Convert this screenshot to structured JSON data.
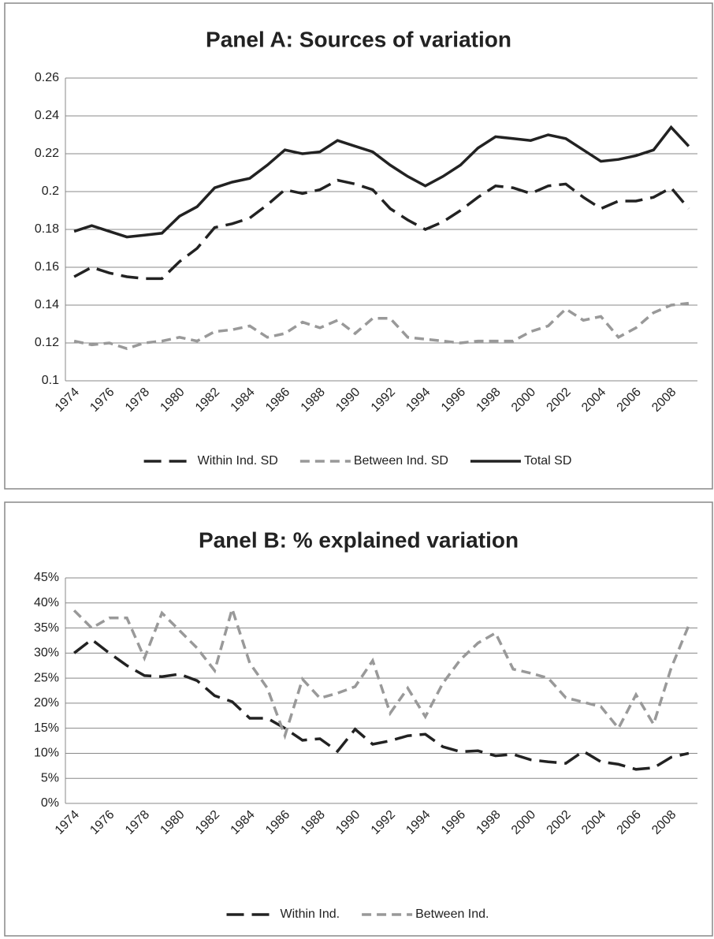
{
  "chart_data": [
    {
      "type": "line",
      "title": "Panel A: Sources of variation",
      "categories": [
        "1974",
        null,
        "1976",
        null,
        "1978",
        null,
        "1980",
        null,
        "1982",
        null,
        "1984",
        null,
        "1986",
        null,
        "1988",
        null,
        "1990",
        null,
        "1992",
        null,
        "1994",
        null,
        "1996",
        null,
        "1998",
        null,
        "2000",
        null,
        "2002",
        null,
        "2004",
        null,
        "2006",
        null,
        "2008",
        null
      ],
      "ylim": [
        0.1,
        0.26
      ],
      "yticks": [
        0.1,
        0.12,
        0.14,
        0.16,
        0.18,
        0.2,
        0.22,
        0.24,
        0.26
      ],
      "grid": true,
      "legend": "bottom",
      "series": [
        {
          "name": "Within Ind. SD",
          "color": "#222222",
          "line_style": "long-dash",
          "values": [
            0.155,
            0.16,
            0.157,
            0.155,
            0.154,
            0.154,
            0.163,
            0.17,
            0.181,
            0.183,
            0.186,
            0.193,
            0.201,
            0.199,
            0.201,
            0.206,
            0.204,
            0.201,
            0.191,
            0.185,
            0.18,
            0.184,
            0.19,
            0.197,
            0.203,
            0.202,
            0.199,
            0.203,
            0.204,
            0.197,
            0.191,
            0.195,
            0.195,
            0.197,
            0.202,
            0.191
          ]
        },
        {
          "name": "Between Ind. SD",
          "color": "#999999",
          "line_style": "dash",
          "values": [
            0.121,
            0.119,
            0.12,
            0.117,
            0.12,
            0.121,
            0.123,
            0.121,
            0.126,
            0.127,
            0.129,
            0.123,
            0.125,
            0.131,
            0.128,
            0.132,
            0.125,
            0.133,
            0.133,
            0.123,
            0.122,
            0.121,
            0.12,
            0.121,
            0.121,
            0.121,
            0.126,
            0.129,
            0.138,
            0.132,
            0.134,
            0.123,
            0.128,
            0.136,
            0.14,
            0.141
          ]
        },
        {
          "name": "Total SD",
          "color": "#222222",
          "line_style": "solid",
          "values": [
            0.179,
            0.182,
            0.179,
            0.176,
            0.177,
            0.178,
            0.187,
            0.192,
            0.202,
            0.205,
            0.207,
            0.214,
            0.222,
            0.22,
            0.221,
            0.227,
            0.224,
            0.221,
            0.214,
            0.208,
            0.203,
            0.208,
            0.214,
            0.223,
            0.229,
            0.228,
            0.227,
            0.23,
            0.228,
            0.222,
            0.216,
            0.217,
            0.219,
            0.222,
            0.234,
            0.224
          ]
        }
      ]
    },
    {
      "type": "line",
      "title": "Panel B: % explained variation",
      "categories": [
        "1974",
        null,
        "1976",
        null,
        "1978",
        null,
        "1980",
        null,
        "1982",
        null,
        "1984",
        null,
        "1986",
        null,
        "1988",
        null,
        "1990",
        null,
        "1992",
        null,
        "1994",
        null,
        "1996",
        null,
        "1998",
        null,
        "2000",
        null,
        "2002",
        null,
        "2004",
        null,
        "2006",
        null,
        "2008",
        null
      ],
      "ylim": [
        0,
        45
      ],
      "yticks": [
        {
          "value": 0,
          "label": "0%"
        },
        {
          "value": 5,
          "label": "5%"
        },
        {
          "value": 10,
          "label": "10%"
        },
        {
          "value": 15,
          "label": "15%"
        },
        {
          "value": 20,
          "label": "20%"
        },
        {
          "value": 25,
          "label": "25%"
        },
        {
          "value": 30,
          "label": "30%"
        },
        {
          "value": 35,
          "label": "35%"
        },
        {
          "value": 40,
          "label": "40%"
        },
        {
          "value": 45,
          "label": "45%"
        }
      ],
      "grid": true,
      "legend": "bottom",
      "series": [
        {
          "name": "Within Ind.",
          "color": "#222222",
          "line_style": "long-dash",
          "values": [
            30,
            32.7,
            30,
            27.5,
            25.5,
            25.3,
            25.8,
            24.5,
            21.5,
            20.3,
            17,
            17,
            15,
            12.6,
            12.9,
            10.4,
            14.8,
            11.8,
            12.5,
            13.5,
            13.8,
            11.3,
            10.3,
            10.5,
            9.5,
            9.8,
            8.7,
            8.3,
            8,
            10.4,
            8.3,
            7.8,
            6.8,
            7.1,
            9.2,
            10
          ]
        },
        {
          "name": "Between Ind.",
          "color": "#999999",
          "line_style": "dash",
          "values": [
            38.5,
            35,
            37,
            37,
            29,
            38,
            34.5,
            31,
            26.5,
            38.8,
            28,
            23,
            13.5,
            24.8,
            21,
            22,
            23.3,
            28.5,
            18,
            23,
            17.3,
            24,
            28.7,
            32,
            34,
            26.8,
            26,
            25,
            21.1,
            20.2,
            19.3,
            15,
            21.7,
            15.8,
            27,
            35.5
          ]
        }
      ]
    }
  ]
}
